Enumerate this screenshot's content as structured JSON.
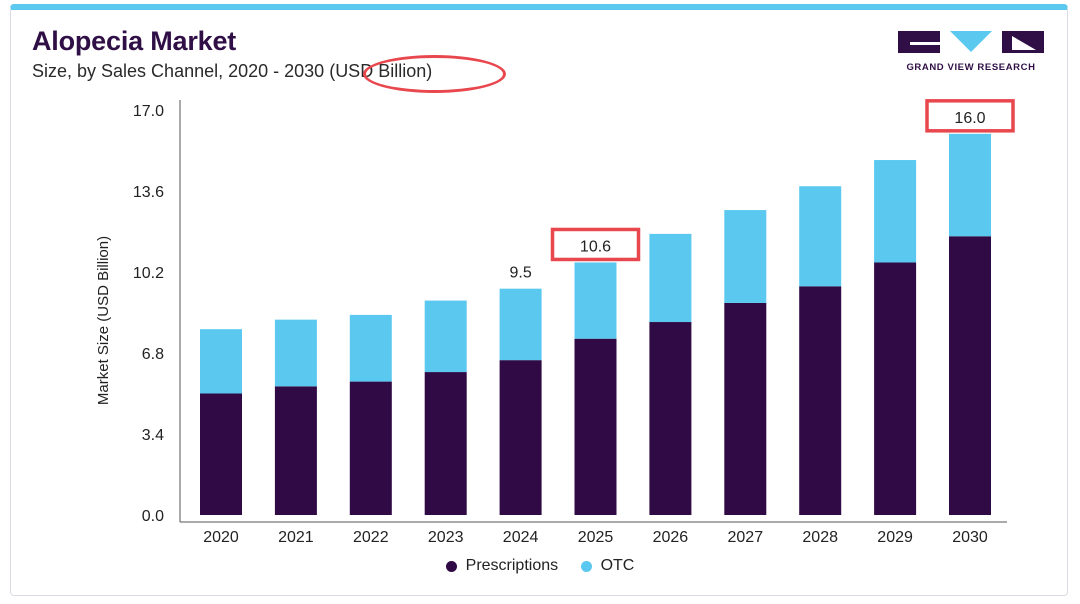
{
  "header": {
    "title": "Alopecia Market",
    "subtitle": "Size, by Sales Channel, 2020 - 2030 (USD Billion)"
  },
  "brand": {
    "logo_text": "GRAND VIEW RESEARCH",
    "logo_color": "#2f0f45",
    "logo_accent": "#5bc8ef"
  },
  "colors": {
    "prescriptions": "#2f0a44",
    "otc": "#5bc8ef",
    "highlight": "#e8474d",
    "accent": "#5bc8ef"
  },
  "chart_data": {
    "type": "bar",
    "stacked": true,
    "title": "Alopecia Market",
    "subtitle": "Size, by Sales Channel, 2020 - 2030 (USD Billion)",
    "xlabel": "",
    "ylabel": "Market Size (USD Billion)",
    "ylim": [
      0,
      17
    ],
    "yticks": [
      "0.0",
      "3.4",
      "6.8",
      "10.2",
      "13.6",
      "17.0"
    ],
    "categories": [
      "2020",
      "2021",
      "2022",
      "2023",
      "2024",
      "2025",
      "2026",
      "2027",
      "2028",
      "2029",
      "2030"
    ],
    "series": [
      {
        "name": "Prescriptions",
        "values": [
          5.1,
          5.4,
          5.6,
          6.0,
          6.5,
          7.4,
          8.1,
          8.9,
          9.6,
          10.6,
          11.7
        ]
      },
      {
        "name": "OTC",
        "values": [
          2.7,
          2.8,
          2.8,
          3.0,
          3.0,
          3.2,
          3.7,
          3.9,
          4.2,
          4.3,
          4.3
        ]
      }
    ],
    "data_labels": [
      {
        "category": "2024",
        "text": "9.5",
        "highlighted": false
      },
      {
        "category": "2025",
        "text": "10.6",
        "highlighted": true
      },
      {
        "category": "2030",
        "text": "16.0",
        "highlighted": true
      }
    ],
    "legend_position": "bottom",
    "grid": false
  }
}
